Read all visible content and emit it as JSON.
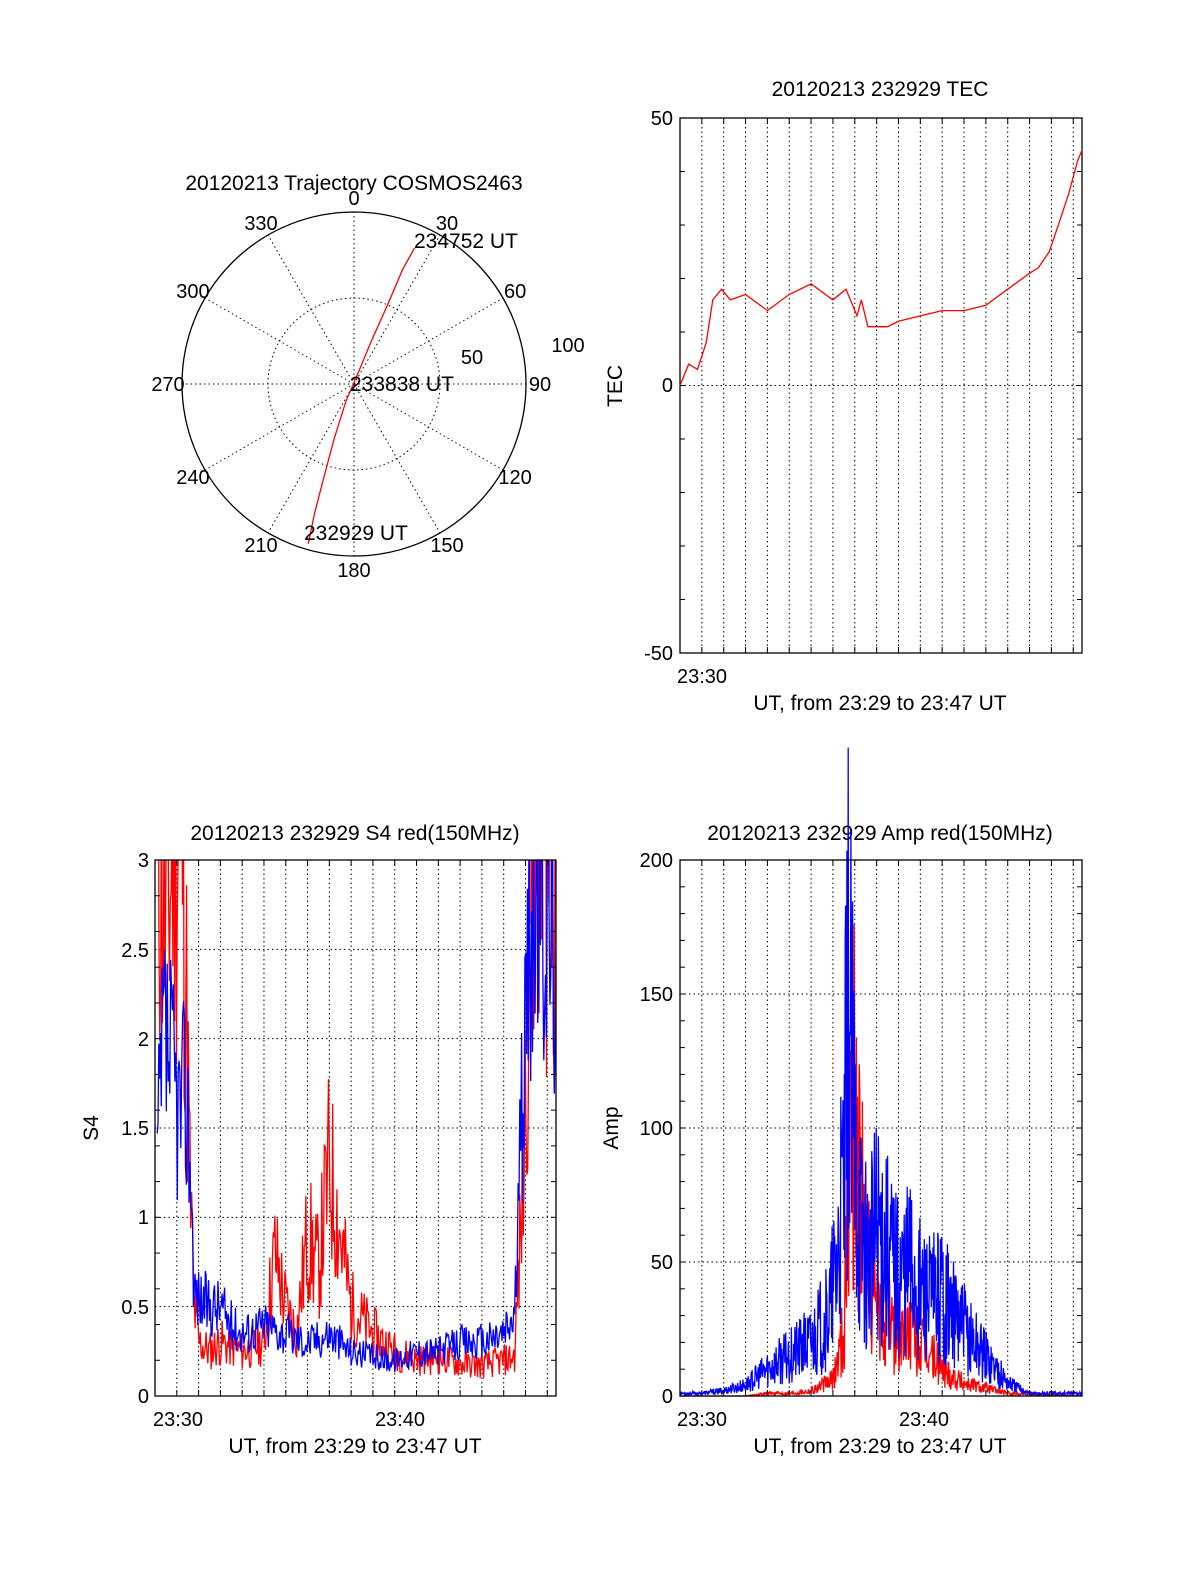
{
  "chart_data": [
    {
      "type": "polar",
      "title": "20120213 Trajectory COSMOS2463",
      "angle_labels": [
        "0",
        "30",
        "60",
        "90",
        "120",
        "150",
        "180",
        "210",
        "240",
        "270",
        "300",
        "330"
      ],
      "radius_labels": [
        "50",
        "100"
      ],
      "grid": true,
      "series": [
        {
          "color": "#ff0000",
          "points": [
            {
              "az": 196,
              "zen": 87
            },
            {
              "az": 197,
              "zen": 70
            },
            {
              "az": 198,
              "zen": 50
            },
            {
              "az": 200,
              "zen": 30
            },
            {
              "az": 205,
              "zen": 10
            },
            {
              "az": 20,
              "zen": 5
            },
            {
              "az": 22,
              "zen": 25
            },
            {
              "az": 23,
              "zen": 45
            },
            {
              "az": 23,
              "zen": 65
            },
            {
              "az": 24,
              "zen": 78
            }
          ]
        }
      ],
      "annotations": [
        "234752 UT",
        "233838 UT",
        "232929 UT"
      ]
    },
    {
      "type": "line",
      "title": "20120213 232929 TEC",
      "xlabel": "UT, from 23:29 to 23:47 UT",
      "ylabel": "TEC",
      "xlim": [
        0,
        18.4
      ],
      "ylim": [
        -50,
        50
      ],
      "xticks": [
        {
          "x": 1.0,
          "label": "23:30"
        }
      ],
      "yticks": [
        "-50",
        "0",
        "50"
      ],
      "grid": true,
      "series": [
        {
          "color": "#ff0000",
          "x": [
            0.0,
            0.4,
            0.8,
            1.2,
            1.5,
            1.9,
            2.3,
            3.0,
            4.0,
            5.0,
            6.0,
            7.0,
            7.6,
            8.1,
            8.3,
            8.6,
            9.0,
            9.5,
            10.0,
            11.0,
            12.0,
            13.0,
            14.0,
            15.0,
            16.0,
            16.4,
            16.9,
            17.4,
            17.8,
            18.2,
            18.4
          ],
          "y": [
            0,
            4,
            3,
            8,
            16,
            18,
            16,
            17,
            14,
            17,
            19,
            16,
            18,
            13,
            16,
            11,
            11,
            11,
            12,
            13,
            14,
            14,
            15,
            18,
            21,
            22,
            25,
            31,
            36,
            42,
            44
          ]
        }
      ]
    },
    {
      "type": "line",
      "title": "20120213 232929 S4 red(150MHz)",
      "xlabel": "UT, from 23:29 to 23:47 UT",
      "ylabel": "S4",
      "xlim": [
        0,
        18.4
      ],
      "ylim": [
        0,
        3
      ],
      "xticks": [
        {
          "x": 1.0,
          "label": "23:30"
        },
        {
          "x": 11.0,
          "label": "23:40"
        }
      ],
      "yticks": [
        "0",
        "0.5",
        "1",
        "1.5",
        "2",
        "2.5",
        "3"
      ],
      "grid": true,
      "series": [
        {
          "name": "",
          "color": "#ff0000",
          "clip": true,
          "x": [
            0.1,
            0.5,
            0.9,
            1.3,
            1.6,
            1.8,
            2.0,
            2.5,
            3.0,
            4.0,
            5.0,
            5.5,
            6.0,
            6.5,
            7.0,
            7.5,
            8.0,
            8.5,
            9.0,
            10.0,
            11.0,
            12.0,
            13.0,
            14.0,
            15.0,
            16.0,
            16.5,
            16.9,
            17.3,
            17.7,
            18.0,
            18.4
          ],
          "y": [
            3.3,
            2.6,
            3.2,
            3.1,
            1.2,
            0.5,
            0.3,
            0.25,
            0.3,
            0.25,
            0.3,
            0.8,
            0.5,
            0.35,
            0.9,
            0.7,
            1.3,
            0.9,
            0.5,
            0.35,
            0.25,
            0.2,
            0.22,
            0.18,
            0.17,
            0.2,
            0.22,
            1.2,
            3.3,
            2.9,
            3.2,
            3.2
          ]
        },
        {
          "name": "",
          "color": "#0000ff",
          "clip": true,
          "x": [
            0.1,
            0.4,
            0.8,
            1.1,
            1.4,
            1.6,
            1.8,
            2.0,
            2.5,
            3.0,
            3.5,
            4.0,
            5.0,
            6.0,
            7.0,
            8.0,
            9.0,
            10.0,
            11.0,
            12.0,
            13.0,
            14.0,
            15.0,
            16.0,
            16.5,
            16.9,
            17.2,
            17.6,
            18.0,
            18.4
          ],
          "y": [
            1.3,
            2.0,
            1.8,
            1.6,
            1.7,
            1.4,
            0.6,
            0.55,
            0.5,
            0.5,
            0.4,
            0.35,
            0.4,
            0.35,
            0.3,
            0.35,
            0.25,
            0.22,
            0.2,
            0.25,
            0.25,
            0.3,
            0.3,
            0.35,
            0.45,
            1.8,
            2.6,
            2.8,
            2.7,
            2.5
          ]
        }
      ]
    },
    {
      "type": "line",
      "title": "20120213 232929 Amp red(150MHz)",
      "xlabel": "UT, from 23:29 to 23:47 UT",
      "ylabel": "Amp",
      "xlim": [
        0,
        18.4
      ],
      "ylim": [
        0,
        200
      ],
      "xticks": [
        {
          "x": 1.0,
          "label": "23:30"
        },
        {
          "x": 11.0,
          "label": "23:40"
        }
      ],
      "yticks": [
        "0",
        "50",
        "100",
        "150",
        "200"
      ],
      "grid": true,
      "series": [
        {
          "name": "",
          "color": "#ff0000",
          "x": [
            0.0,
            3.0,
            4.0,
            5.0,
            6.0,
            7.0,
            7.5,
            7.7,
            7.9,
            8.1,
            8.4,
            8.8,
            9.2,
            9.6,
            10.0,
            10.5,
            11.0,
            11.5,
            12.0,
            13.0,
            14.0,
            15.0,
            18.4
          ],
          "y": [
            0,
            0,
            1,
            1,
            2,
            6,
            25,
            75,
            120,
            95,
            60,
            40,
            25,
            30,
            20,
            25,
            18,
            15,
            10,
            5,
            3,
            1,
            0
          ]
        },
        {
          "name": "",
          "color": "#0000ff",
          "x": [
            0.0,
            1.0,
            2.0,
            3.0,
            4.0,
            5.0,
            6.0,
            6.8,
            7.2,
            7.5,
            7.7,
            8.0,
            8.3,
            8.7,
            9.0,
            9.5,
            10.0,
            10.5,
            11.0,
            11.5,
            12.0,
            12.5,
            13.0,
            13.5,
            14.0,
            14.5,
            15.0,
            16.0,
            18.4
          ],
          "y": [
            1,
            1,
            2,
            4,
            10,
            15,
            20,
            30,
            50,
            80,
            150,
            90,
            60,
            50,
            65,
            55,
            45,
            50,
            40,
            35,
            40,
            30,
            25,
            20,
            15,
            10,
            5,
            1,
            1
          ]
        }
      ]
    }
  ]
}
